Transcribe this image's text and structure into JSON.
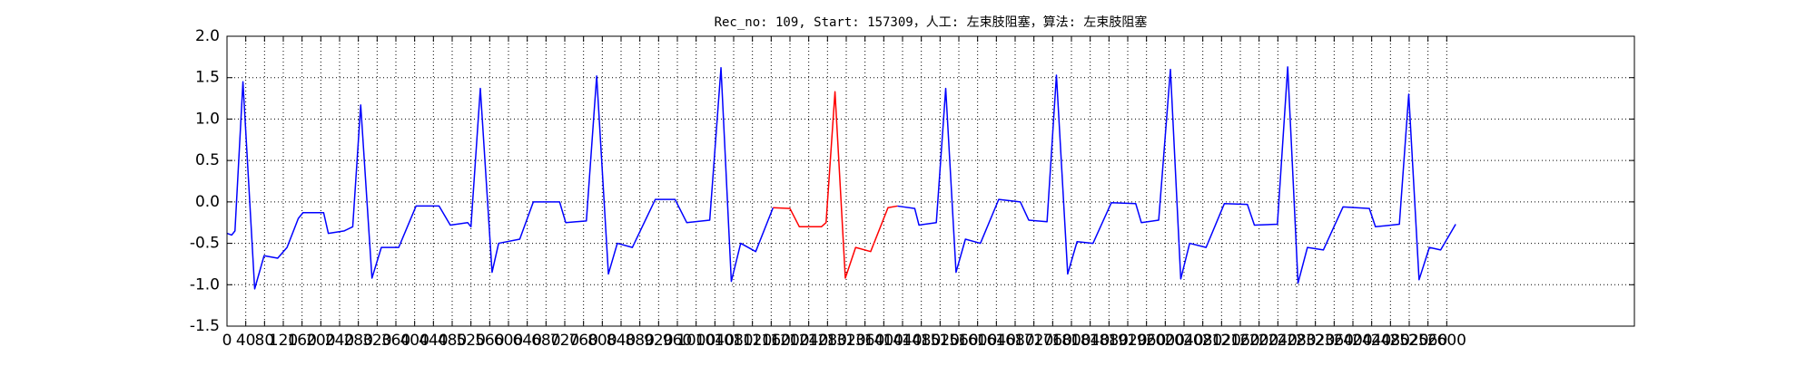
{
  "chart_data": {
    "type": "line",
    "title": "Rec_no: 109, Start: 157309，人工: 左束肢阻塞，算法: 左束肢阻塞",
    "x": [
      0,
      10,
      17,
      34,
      59,
      79,
      108,
      128,
      152,
      162,
      206,
      216,
      250,
      268,
      285,
      309,
      329,
      366,
      403,
      452,
      476,
      513,
      520,
      540,
      565,
      579,
      624,
      653,
      709,
      722,
      766,
      788,
      813,
      832,
      864,
      913,
      955,
      980,
      1029,
      1053,
      1075,
      1095,
      1127,
      1164,
      1200,
      1220,
      1267,
      1277,
      1296,
      1318,
      1340,
      1372,
      1409,
      1429,
      1466,
      1475,
      1512,
      1532,
      1554,
      1574,
      1606,
      1645,
      1691,
      1709,
      1748,
      1768,
      1792,
      1812,
      1846,
      1885,
      1937,
      1949,
      1986,
      2011,
      2033,
      2052,
      2087,
      2126,
      2175,
      2190,
      2239,
      2261,
      2283,
      2303,
      2337,
      2379,
      2435,
      2448,
      2499,
      2519,
      2541,
      2563,
      2587,
      2619
    ],
    "series": [
      {
        "color": "#0000ff",
        "values": [
          -0.38,
          -0.4,
          -0.35,
          1.45,
          -1.05,
          -0.65,
          -0.68,
          -0.55,
          -0.2,
          -0.13,
          -0.13,
          -0.38,
          -0.35,
          -0.3,
          1.17,
          -0.92,
          -0.55,
          -0.55,
          -0.05,
          -0.05,
          -0.28,
          -0.25,
          -0.3,
          1.37,
          -0.85,
          -0.5,
          -0.45,
          0.0,
          0.0,
          -0.25,
          -0.23,
          1.52,
          -0.87,
          -0.5,
          -0.55,
          0.03,
          0.03,
          -0.25,
          -0.22,
          1.62,
          -0.96,
          -0.5,
          -0.6,
          -0.07,
          null,
          null,
          null,
          null,
          null,
          null,
          null,
          null,
          null,
          -0.05,
          -0.08,
          -0.28,
          -0.25,
          1.37,
          -0.85,
          -0.45,
          -0.5,
          0.03,
          0.0,
          -0.22,
          -0.24,
          1.53,
          -0.87,
          -0.48,
          -0.5,
          -0.01,
          -0.02,
          -0.25,
          -0.22,
          1.6,
          -0.93,
          -0.5,
          -0.55,
          -0.02,
          -0.03,
          -0.28,
          -0.27,
          1.63,
          -0.98,
          -0.55,
          -0.58,
          -0.06,
          -0.08,
          -0.3,
          -0.27,
          1.3,
          -0.94,
          -0.55,
          -0.58,
          -0.27
        ]
      },
      {
        "color": "#ff0000",
        "values": [
          null,
          null,
          null,
          null,
          null,
          null,
          null,
          null,
          null,
          null,
          null,
          null,
          null,
          null,
          null,
          null,
          null,
          null,
          null,
          null,
          null,
          null,
          null,
          null,
          null,
          null,
          null,
          null,
          null,
          null,
          null,
          null,
          null,
          null,
          null,
          null,
          null,
          null,
          null,
          null,
          null,
          null,
          null,
          -0.07,
          -0.08,
          -0.3,
          -0.3,
          -0.25,
          1.33,
          -0.92,
          -0.55,
          -0.6,
          -0.07,
          -0.05,
          null,
          null,
          null,
          null,
          null,
          null,
          null,
          null,
          null,
          null,
          null,
          null,
          null,
          null,
          null,
          null,
          null,
          null,
          null,
          null,
          null,
          null,
          null,
          null,
          null,
          null,
          null,
          null,
          null,
          null,
          null,
          null,
          null,
          null,
          null,
          null,
          null,
          null,
          null,
          null
        ]
      }
    ],
    "xlim": [
      0,
      3000
    ],
    "xticks": [
      0,
      40,
      80,
      120,
      160,
      200,
      240,
      280,
      320,
      360,
      400,
      440,
      480,
      520,
      560,
      600,
      640,
      680,
      720,
      760,
      800,
      840,
      880,
      920,
      960,
      1000,
      1040,
      1080,
      1120,
      1160,
      1200,
      1240,
      1280,
      1320,
      1360,
      1400,
      1440,
      1480,
      1520,
      1560,
      1600,
      1640,
      1680,
      1720,
      1760,
      1800,
      1840,
      1880,
      1920,
      1960,
      2000,
      2040,
      2080,
      2120,
      2160,
      2200,
      2240,
      2280,
      2320,
      2360,
      2400,
      2440,
      2480,
      2520,
      2560,
      2600
    ],
    "ylim": [
      -1.5,
      2.0
    ],
    "yticks": [
      -1.5,
      {
        "value": -1.0,
        "label": "-1.0"
      },
      -0.5,
      {
        "value": 0.0,
        "label": "0.0"
      },
      0.5,
      {
        "value": 1.0,
        "label": "1.0"
      },
      1.5,
      {
        "value": 2.0,
        "label": "2.0"
      }
    ],
    "grid": true
  }
}
